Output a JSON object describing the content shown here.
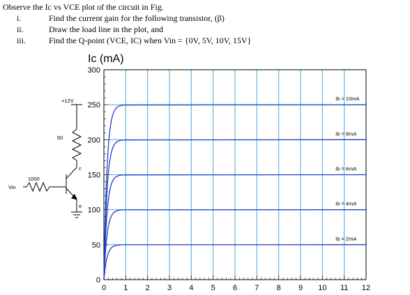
{
  "question": {
    "intro": "Observe the Ic vs VCE plot of the circuit in Fig.",
    "items": [
      {
        "num": "i.",
        "text": "Find the current gain for the following transistor, (β)"
      },
      {
        "num": "ii.",
        "text": "Draw the load line in the plot, and"
      },
      {
        "num": "iii.",
        "text": "Find the Q-point (VCE, IC) when Vin = {0V, 5V, 10V, 15V}"
      }
    ]
  },
  "circuit": {
    "supply_label": "+12V",
    "collector_resistor": "50",
    "base_resistor": "1000",
    "input_label": "Vin",
    "collector_label": "c",
    "emitter_label": "e"
  },
  "chart_data": {
    "type": "line",
    "title": "Ic (mA)",
    "xlabel": "",
    "ylabel": "Ic (mA)",
    "xlim": [
      0,
      12
    ],
    "ylim": [
      0,
      300
    ],
    "xticks": [
      "0",
      "1",
      "2",
      "3",
      "4",
      "5",
      "6",
      "7",
      "8",
      "9",
      "10",
      "11",
      "12"
    ],
    "yticks": [
      "0",
      "50",
      "100",
      "150",
      "200",
      "250",
      "300"
    ],
    "grid": true,
    "series": [
      {
        "name": "Ib = 10mA",
        "saturation_ic": 250,
        "color": "#1f3fc8"
      },
      {
        "name": "Ib = 8mA",
        "saturation_ic": 200,
        "color": "#1f3fc8"
      },
      {
        "name": "Ib = 6mA",
        "saturation_ic": 150,
        "color": "#1f3fc8"
      },
      {
        "name": "Ib = 4mA",
        "saturation_ic": 100,
        "color": "#1f3fc8"
      },
      {
        "name": "Ib = 2mA",
        "saturation_ic": 50,
        "color": "#1f3fc8"
      }
    ],
    "colors": {
      "grid": "#4aa8d8",
      "curve": "#1f3fc8"
    }
  }
}
